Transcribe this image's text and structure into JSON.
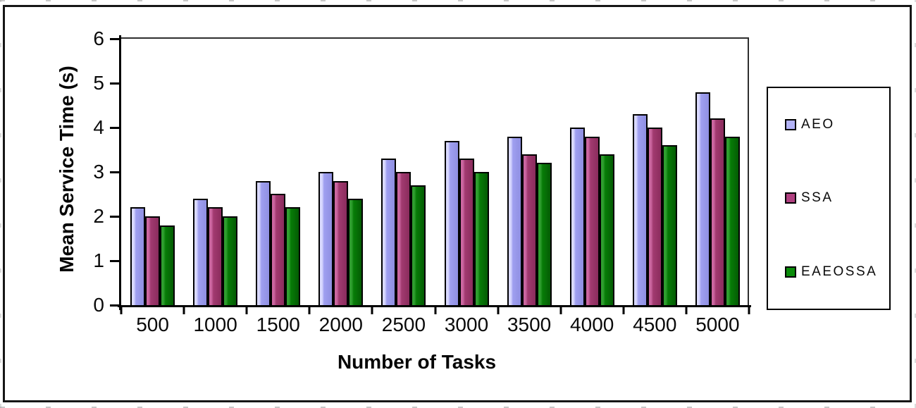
{
  "figure": {
    "background": "#ffffff",
    "frame_border_color": "#161616"
  },
  "chart_data": {
    "type": "bar",
    "title": "",
    "xlabel": "Number of Tasks",
    "ylabel": "Mean Service Time (s)",
    "categories": [
      "500",
      "1000",
      "1500",
      "2000",
      "2500",
      "3000",
      "3500",
      "4000",
      "4500",
      "5000"
    ],
    "series": [
      {
        "name": "AEO",
        "color": "#9f9ff0",
        "light": "#d9d9ff",
        "dark": "#8f8fe2",
        "marker": "#b3b3f7",
        "values": [
          2.2,
          2.4,
          2.8,
          3.0,
          3.3,
          3.7,
          3.8,
          4.0,
          4.3,
          4.8
        ]
      },
      {
        "name": "SSA",
        "color": "#a23a70",
        "light": "#cb66a0",
        "dark": "#8a2c5d",
        "marker": "#b04080",
        "values": [
          2.0,
          2.2,
          2.5,
          2.8,
          3.0,
          3.3,
          3.4,
          3.8,
          4.0,
          4.2
        ]
      },
      {
        "name": "EAEOSSA",
        "color": "#077c07",
        "light": "#2f9e2f",
        "dark": "#045c04",
        "marker": "#0a8c0a",
        "values": [
          1.8,
          2.0,
          2.2,
          2.4,
          2.7,
          3.0,
          3.2,
          3.4,
          3.6,
          3.8
        ]
      }
    ],
    "ylim": [
      0,
      6
    ],
    "yticks": [
      "0",
      "1",
      "2",
      "3",
      "4",
      "5",
      "6"
    ],
    "grid": false,
    "legend_position": "right"
  }
}
